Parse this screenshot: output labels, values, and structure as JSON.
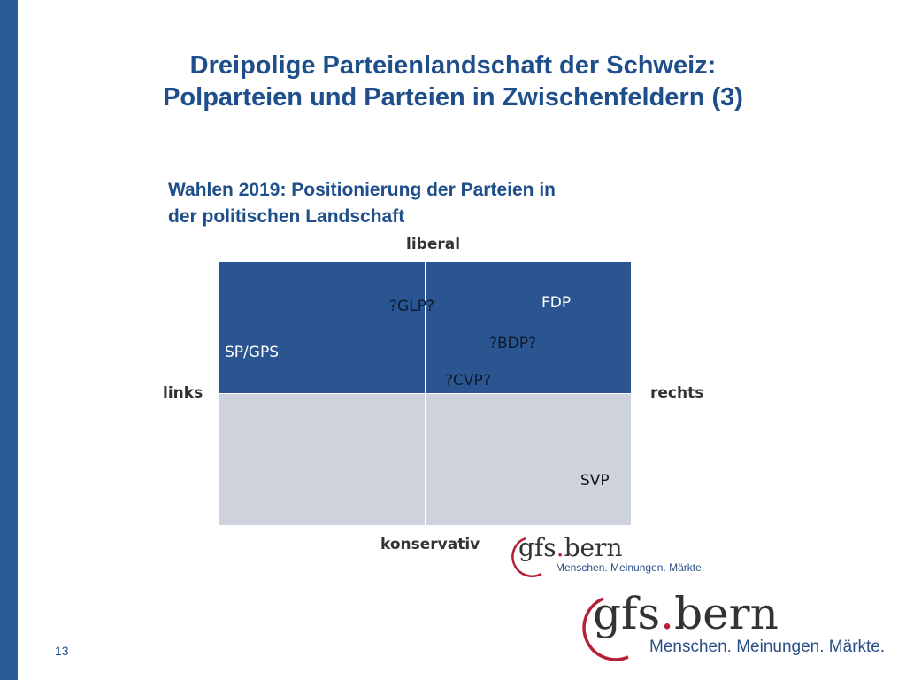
{
  "slide": {
    "title_line1": "Dreipolige Parteienlandschaft der Schweiz:",
    "title_line2": "Polparteien und Parteien in Zwischenfeldern (3)",
    "page_number": "13"
  },
  "diagram": {
    "title_line1": "Wahlen 2019: Positionierung der Parteien in",
    "title_line2": "der politischen Landschaft",
    "axis": {
      "top": "liberal",
      "bottom": "konservativ",
      "left": "links",
      "right": "rechts"
    },
    "quadrant_colors": {
      "liberal": "#2a5590",
      "konservativ": "#cdd2dc"
    },
    "parties": {
      "glp": "?GLP?",
      "fdp": "FDP",
      "sp_gps": "SP/GPS",
      "bdp": "?BDP?",
      "cvp": "?CVP?",
      "svp": "SVP"
    }
  },
  "logo": {
    "name_part1": "gfs",
    "name_dot": ".",
    "name_part2": "bern",
    "tagline": "Menschen. Meinungen. Märkte.",
    "accent_color": "#b71f36"
  }
}
